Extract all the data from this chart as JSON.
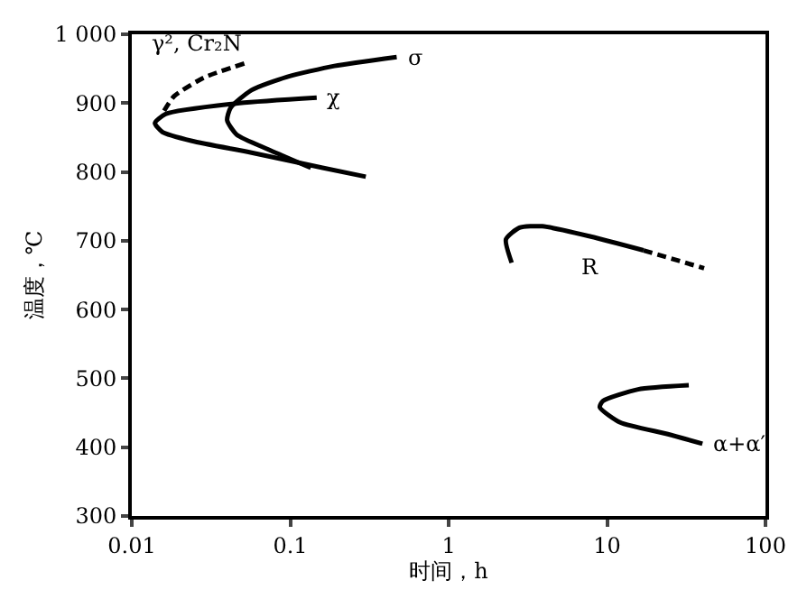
{
  "chart_data": {
    "type": "line",
    "xlabel": "时间，h",
    "ylabel": "温度，℃",
    "log": "x",
    "legend": false,
    "marker": "none",
    "xlim": [
      0.01,
      100
    ],
    "xticks": [
      0.01,
      0.1,
      1,
      10,
      100
    ],
    "ylim": [
      300,
      1000
    ],
    "yticks": [
      300,
      400,
      500,
      600,
      700,
      800,
      900,
      {
        "value": 1000,
        "label": "1 000"
      }
    ],
    "series": [
      {
        "name": "σ",
        "color": "#000000",
        "line_style": "solid",
        "x": [
          0.135,
          0.074,
          0.046,
          0.04,
          0.042,
          0.057,
          0.095,
          0.19,
          0.47
        ],
        "values": [
          806,
          832,
          854,
          875,
          893,
          919,
          938,
          954,
          967
        ]
      },
      {
        "name": "χ",
        "color": "#000000",
        "line_style": "solid",
        "x": [
          0.3,
          0.16,
          0.057,
          0.024,
          0.0156,
          0.014,
          0.0163,
          0.048,
          0.147
        ],
        "values": [
          793,
          806,
          828,
          845,
          858,
          871,
          884,
          900,
          908
        ]
      },
      {
        "name": "γ², Cr₂N",
        "color": "#000000",
        "line_style": "dashed",
        "x": [
          0.016,
          0.0185,
          0.0285,
          0.052
        ],
        "values": [
          889,
          910,
          937,
          958
        ]
      },
      {
        "name": "R",
        "color": "#000000",
        "line_style": "solid",
        "x": [
          2.5,
          2.3,
          2.8,
          3.9,
          7.9,
          17
        ],
        "values": [
          668,
          702,
          719,
          721,
          706,
          686
        ]
      },
      {
        "color": "#000000",
        "line_style": "dashed",
        "x": [
          17,
          41
        ],
        "values": [
          686,
          660
        ]
      },
      {
        "name": "α+α′",
        "color": "#000000",
        "line_style": "solid",
        "x": [
          32.8,
          15.7,
          9.4,
          9.0,
          12.1,
          24.2,
          40
        ],
        "values": [
          490,
          484,
          467,
          458,
          436,
          419,
          405
        ]
      }
    ]
  }
}
